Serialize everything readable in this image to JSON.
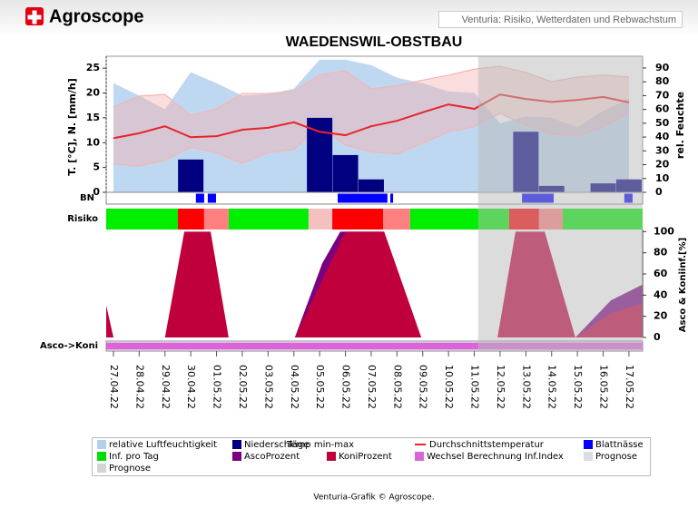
{
  "header": {
    "logo": "Agroscope",
    "subtitle": "Venturia: Risiko, Wetterdaten und Rebwachstum"
  },
  "footer": "Venturia-Grafik © Agroscope.",
  "chart_data": {
    "type": "combo",
    "title": "WAEDENSWIL-OBSTBAU",
    "categories": [
      "27.04.22",
      "28.04.22",
      "29.04.22",
      "30.04.22",
      "01.05.22",
      "02.05.22",
      "03.05.22",
      "04.05.22",
      "05.05.22",
      "06.05.22",
      "07.05.22",
      "08.05.22",
      "09.05.22",
      "10.05.22",
      "11.05.22",
      "12.05.22",
      "13.05.22",
      "14.05.22",
      "15.05.22",
      "16.05.22",
      "17.05.22"
    ],
    "xlim": [
      -0.28,
      20.53
    ],
    "forecast": {
      "from": 14.15,
      "series": [
        {
          "name": "Prognose",
          "color": "#dcdce8"
        },
        {
          "name": "Prognose",
          "color": "#d3d3d3"
        }
      ]
    },
    "panels": [
      {
        "type": "weather",
        "ylabel": "T. [°C], N. [mm/h]",
        "y2label": "rel. Feuchte",
        "ylim": [
          0,
          27.4
        ],
        "yticks": [
          0,
          5,
          10,
          15,
          20,
          25
        ],
        "y2lim": [
          0,
          98.5
        ],
        "y2ticks": [
          0,
          10,
          20,
          30,
          40,
          50,
          60,
          70,
          80,
          90
        ],
        "series": [
          {
            "name": "relative Luftfeuchtigkeit",
            "type": "area",
            "axis": "y2",
            "color": "#b3d1ef",
            "values": [
              79,
              70,
              60,
              87,
              79,
              70,
              71,
              75,
              96,
              96,
              92,
              83,
              79,
              73,
              72,
              50,
              55,
              54,
              47,
              59,
              68
            ]
          },
          {
            "name": "Temp min-max",
            "type": "band",
            "color": "#f6b4b4",
            "values": [
              17.2,
              19.4,
              19.7,
              15.5,
              16.8,
              19.9,
              19.9,
              20.4,
              23.6,
              24.5,
              20.8,
              21.5,
              22.6,
              23.6,
              24.8,
              25.4,
              24.1,
              22.3,
              23.2,
              23.6,
              23.2
            ],
            "lower": [
              5.7,
              5.3,
              6.4,
              9.1,
              8,
              5.8,
              8,
              8.6,
              13.2,
              9.5,
              8.2,
              7.7,
              9.9,
              12.2,
              13.2,
              15.9,
              13.5,
              11.7,
              11.3,
              13.2,
              15.9
            ]
          },
          {
            "name": "Niederschläge",
            "type": "bar",
            "color": "#000080",
            "values": [
              0,
              0,
              0,
              6.6,
              0,
              0,
              0,
              0,
              15,
              7.5,
              2.6,
              0,
              0,
              0,
              0,
              0,
              12.2,
              1.3,
              0,
              1.8,
              2.6
            ]
          },
          {
            "name": "Durchschnittstemperatur",
            "type": "line",
            "color": "#e8242a",
            "values": [
              10.9,
              11.9,
              13.3,
              11.1,
              11.3,
              12.6,
              13,
              14.1,
              12.2,
              11.5,
              13.3,
              14.4,
              16.1,
              17.7,
              16.8,
              19.7,
              18.8,
              18.2,
              18.6,
              19.2,
              18.1
            ]
          }
        ]
      },
      {
        "type": "intervals",
        "label": "BN",
        "series": [
          {
            "name": "Blattnässe",
            "color": "#0000ff",
            "intervals": [
              [
                3.2,
                3.52
              ],
              [
                3.66,
                3.98
              ],
              [
                8.7,
                10.63
              ],
              [
                10.74,
                10.85
              ],
              [
                15.85,
                17.08
              ],
              [
                19.82,
                20.14
              ]
            ]
          }
        ]
      },
      {
        "type": "segments",
        "label": "Risiko",
        "series": [
          {
            "name": "Inf. pro Tag",
            "color": "#00dd00",
            "segments": [
              {
                "from": -0.28,
                "to": 2.5,
                "color": "#00ee00"
              },
              {
                "from": 2.5,
                "to": 3.52,
                "color": "#ff0000"
              },
              {
                "from": 3.52,
                "to": 4.47,
                "color": "#ff8080"
              },
              {
                "from": 4.47,
                "to": 7.57,
                "color": "#00ee00"
              },
              {
                "from": 7.57,
                "to": 8.49,
                "color": "#f4c0c0"
              },
              {
                "from": 8.49,
                "to": 10.46,
                "color": "#ff0000"
              },
              {
                "from": 10.46,
                "to": 11.51,
                "color": "#ff8080"
              },
              {
                "from": 11.51,
                "to": 15.35,
                "color": "#00ee00"
              },
              {
                "from": 15.35,
                "to": 16.51,
                "color": "#ff0000"
              },
              {
                "from": 16.51,
                "to": 17.43,
                "color": "#ff8080"
              },
              {
                "from": 17.43,
                "to": 20.53,
                "color": "#00ee00"
              }
            ]
          }
        ]
      },
      {
        "type": "area",
        "ylabel": "Asco & Koniinf.[%]",
        "ylim": [
          0,
          102
        ],
        "yticks": [
          0,
          20,
          40,
          60,
          80,
          100
        ],
        "series": [
          {
            "name": "AscoProzent",
            "color": "#7a0080",
            "x": [
              -0.28,
              0,
              7.04,
              8.1,
              8.8,
              10.5,
              11.94,
              17.92,
              19.3,
              20.53
            ],
            "values": [
              30,
              0,
              0,
              70,
              100,
              100,
              0,
              0,
              35,
              50
            ]
          },
          {
            "name": "KoniProzent",
            "color": "#c0003c",
            "x": [
              -0.28,
              0,
              2.0,
              2.75,
              3.77,
              4.47,
              7.04,
              9.0,
              10.5,
              11.94,
              14.9,
              15.6,
              16.73,
              17.92,
              19.3,
              20.53
            ],
            "values": [
              30,
              0,
              0,
              100,
              100,
              0,
              0,
              100,
              100,
              0,
              0,
              100,
              100,
              0,
              23,
              32
            ]
          }
        ]
      },
      {
        "type": "intervals",
        "label": "Asco->Koni",
        "series": [
          {
            "name": "Wechsel Berechnung Inf.Index",
            "color": "#d966d9",
            "intervals": [
              [
                -0.28,
                20.53
              ]
            ]
          }
        ]
      }
    ]
  }
}
